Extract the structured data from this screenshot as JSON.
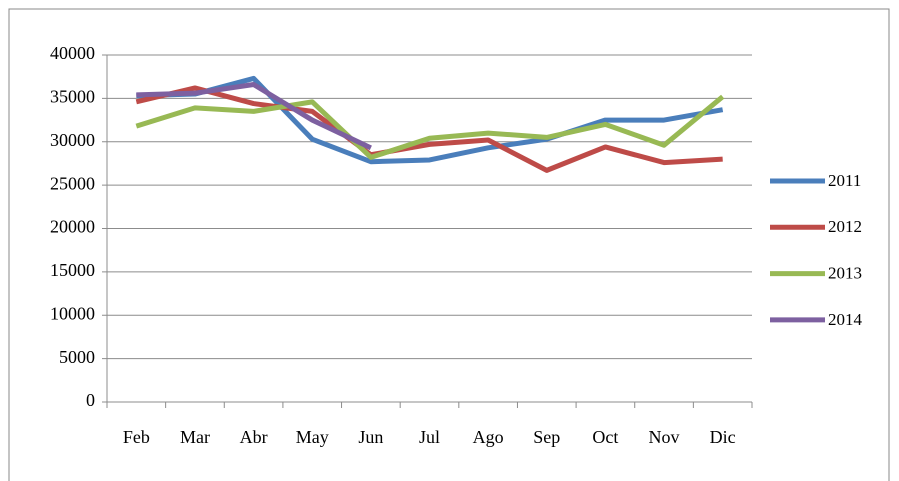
{
  "chart_data": {
    "type": "line",
    "categories": [
      "Feb",
      "Mar",
      "Abr",
      "May",
      "Jun",
      "Jul",
      "Ago",
      "Sep",
      "Oct",
      "Nov",
      "Dic"
    ],
    "series": [
      {
        "name": "2011",
        "color": "#4a7ebb",
        "values": [
          35300,
          35500,
          37300,
          30300,
          27700,
          27900,
          29300,
          30300,
          32500,
          32500,
          33700
        ]
      },
      {
        "name": "2012",
        "color": "#be4b48",
        "values": [
          34600,
          36200,
          34400,
          33500,
          28500,
          29700,
          30200,
          26700,
          29400,
          27600,
          28000
        ]
      },
      {
        "name": "2013",
        "color": "#98b954",
        "values": [
          31800,
          33900,
          33500,
          34600,
          28200,
          30400,
          31000,
          30500,
          32000,
          29600,
          35200
        ]
      },
      {
        "name": "2014",
        "color": "#7d60a0",
        "values": [
          35400,
          35600,
          36600,
          32500,
          29300,
          null,
          null,
          null,
          null,
          null,
          null
        ]
      }
    ],
    "ylim": [
      0,
      40000
    ],
    "yticks": [
      0,
      5000,
      10000,
      15000,
      20000,
      25000,
      30000,
      35000,
      40000
    ],
    "grid": true,
    "legend": "right"
  }
}
